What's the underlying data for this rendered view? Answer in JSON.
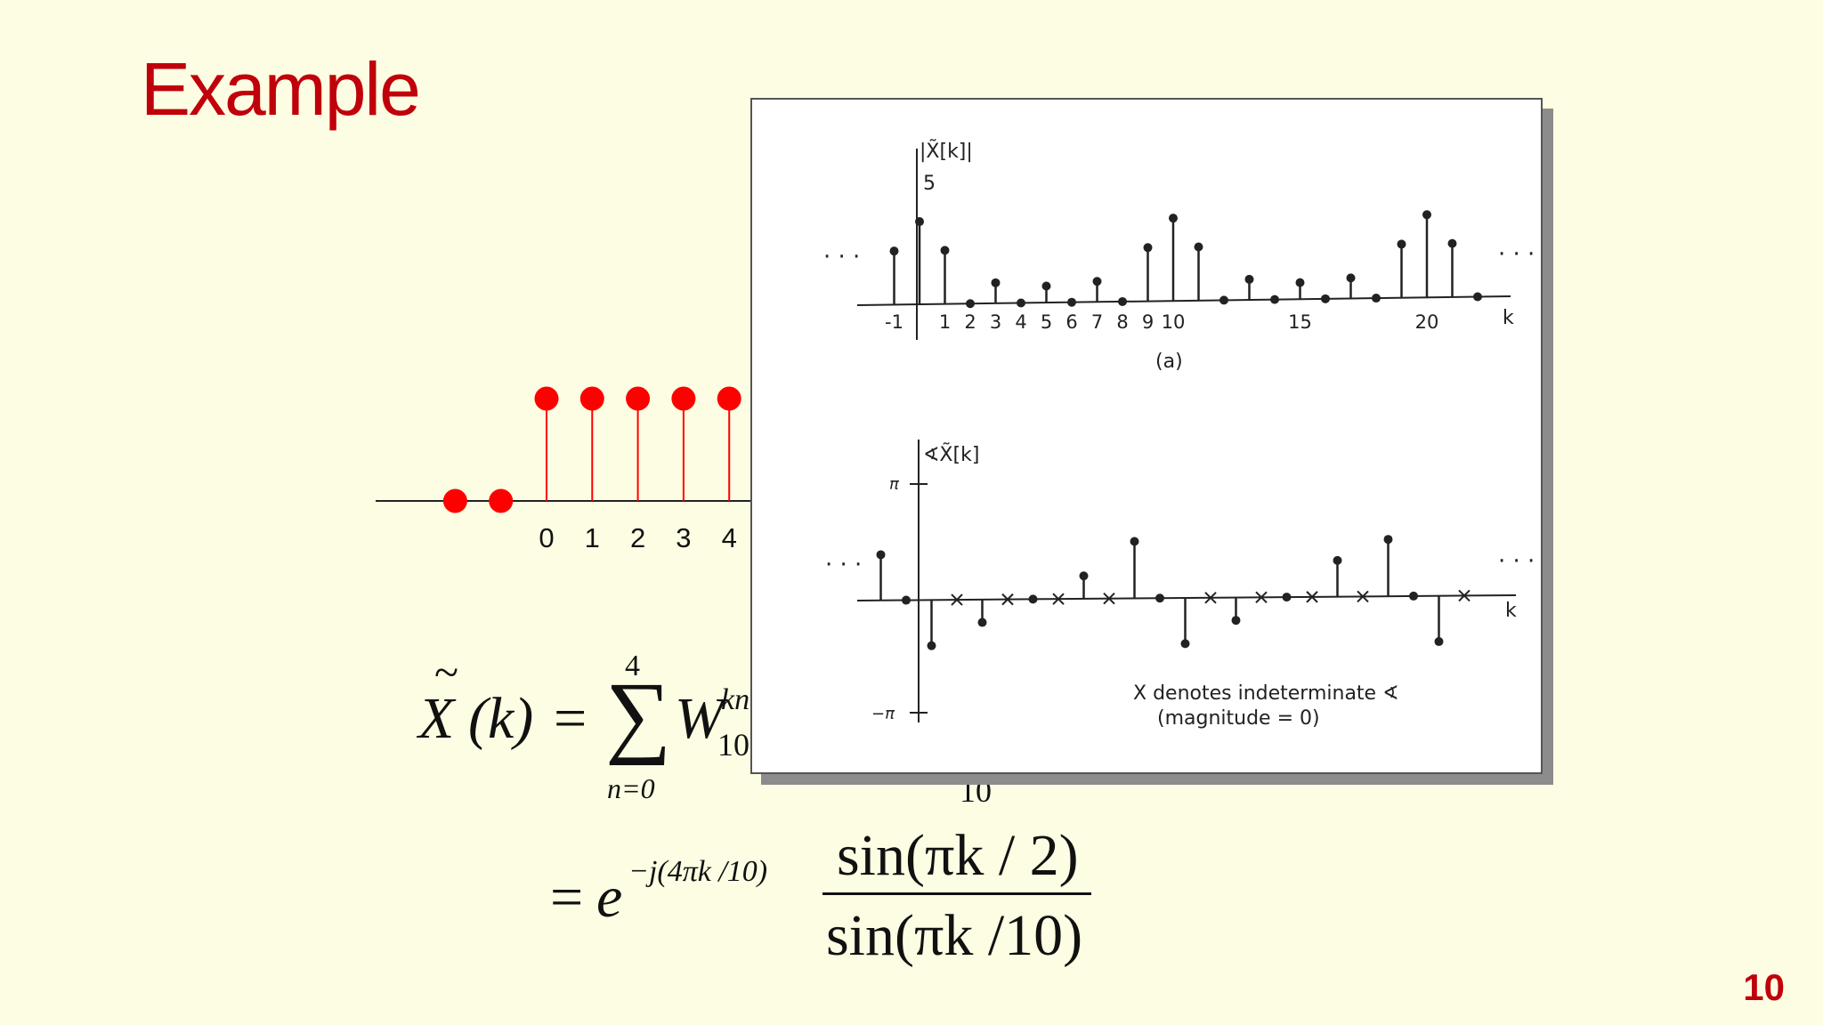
{
  "title": "Example",
  "page_number": "10",
  "stem_plot": {
    "color": "#ff0000",
    "points": [
      {
        "n": -2,
        "value": 0
      },
      {
        "n": -1,
        "value": 0
      },
      {
        "n": 0,
        "value": 1
      },
      {
        "n": 1,
        "value": 1
      },
      {
        "n": 2,
        "value": 1
      },
      {
        "n": 3,
        "value": 1
      },
      {
        "n": 4,
        "value": 1
      }
    ],
    "tick_labels": [
      "0",
      "1",
      "2",
      "3",
      "4"
    ]
  },
  "equation": {
    "lhs_base": "X",
    "lhs_arg": "(k)",
    "equals": "=",
    "sum_upper": "4",
    "sum_lower": "n=0",
    "term_base": "W",
    "term_sub": "10",
    "term_sup": "kn",
    "hidden_sub": "10",
    "exp_base": "e",
    "exp_sup": "−j(4πk /10)",
    "numerator": "sin(πk / 2)",
    "denominator": "sin(πk /10)"
  },
  "figure": {
    "top": {
      "ylabel": "|X̃[k]|",
      "peak_label": "5",
      "xlabel": "k",
      "caption": "(a)",
      "tick_labels": [
        "-1",
        "1",
        "2",
        "3",
        "4",
        "5",
        "6",
        "7",
        "8",
        "9",
        "10",
        "15",
        "20"
      ],
      "ellipsis": "· · ·",
      "points": [
        {
          "k": -1,
          "value": 3.24
        },
        {
          "k": 0,
          "value": 5
        },
        {
          "k": 1,
          "value": 3.24
        },
        {
          "k": 2,
          "value": 0
        },
        {
          "k": 3,
          "value": 1.24
        },
        {
          "k": 4,
          "value": 0
        },
        {
          "k": 5,
          "value": 1
        },
        {
          "k": 6,
          "value": 0
        },
        {
          "k": 7,
          "value": 1.24
        },
        {
          "k": 8,
          "value": 0
        },
        {
          "k": 9,
          "value": 3.24
        },
        {
          "k": 10,
          "value": 5
        },
        {
          "k": 11,
          "value": 3.24
        },
        {
          "k": 12,
          "value": 0
        },
        {
          "k": 13,
          "value": 1.24
        },
        {
          "k": 14,
          "value": 0
        },
        {
          "k": 15,
          "value": 1
        },
        {
          "k": 16,
          "value": 0
        },
        {
          "k": 17,
          "value": 1.24
        },
        {
          "k": 18,
          "value": 0
        },
        {
          "k": 19,
          "value": 3.24
        },
        {
          "k": 20,
          "value": 5
        },
        {
          "k": 21,
          "value": 3.24
        },
        {
          "k": 22,
          "value": 0
        }
      ]
    },
    "bottom": {
      "ylabel": "∢X̃[k]",
      "pi_label": "π",
      "neg_pi_label": "−π",
      "xlabel": "k",
      "ellipsis": "· · ·",
      "note_line1": "X denotes indeterminate ∢",
      "note_line2": "(magnitude = 0)",
      "points": [
        {
          "k": -1,
          "phase": 1.26,
          "indeterminate": false
        },
        {
          "k": 0,
          "phase": 0,
          "indeterminate": false
        },
        {
          "k": 1,
          "phase": -1.26,
          "indeterminate": false
        },
        {
          "k": 2,
          "phase": 0,
          "indeterminate": true
        },
        {
          "k": 3,
          "phase": -0.63,
          "indeterminate": false
        },
        {
          "k": 4,
          "phase": 0,
          "indeterminate": true
        },
        {
          "k": 5,
          "phase": 0,
          "indeterminate": false
        },
        {
          "k": 6,
          "phase": 0,
          "indeterminate": true
        },
        {
          "k": 7,
          "phase": 0.63,
          "indeterminate": false
        },
        {
          "k": 8,
          "phase": 0,
          "indeterminate": true
        },
        {
          "k": 9,
          "phase": 1.57,
          "indeterminate": false
        },
        {
          "k": 10,
          "phase": 0,
          "indeterminate": false
        },
        {
          "k": 11,
          "phase": -1.26,
          "indeterminate": false
        },
        {
          "k": 12,
          "phase": 0,
          "indeterminate": true
        },
        {
          "k": 13,
          "phase": -0.63,
          "indeterminate": false
        },
        {
          "k": 14,
          "phase": 0,
          "indeterminate": true
        },
        {
          "k": 15,
          "phase": 0,
          "indeterminate": false
        },
        {
          "k": 16,
          "phase": 0,
          "indeterminate": true
        },
        {
          "k": 17,
          "phase": 1.0,
          "indeterminate": false
        },
        {
          "k": 18,
          "phase": 0,
          "indeterminate": true
        },
        {
          "k": 19,
          "phase": 1.57,
          "indeterminate": false
        },
        {
          "k": 20,
          "phase": 0,
          "indeterminate": false
        },
        {
          "k": 21,
          "phase": -1.26,
          "indeterminate": false
        },
        {
          "k": 22,
          "phase": 0,
          "indeterminate": true
        }
      ]
    }
  }
}
